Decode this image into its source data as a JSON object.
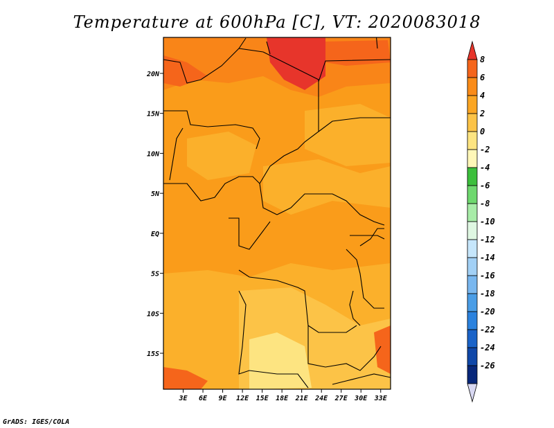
{
  "title": "Temperature at 600hPa [C], VT: 2020083018",
  "credit": "GrADS: IGES/COLA",
  "map": {
    "lon_range": [
      0,
      34.5
    ],
    "lat_range": [
      -19.5,
      24.5
    ],
    "lon_ticks": [
      {
        "v": 3,
        "label": "3E"
      },
      {
        "v": 6,
        "label": "6E"
      },
      {
        "v": 9,
        "label": "9E"
      },
      {
        "v": 12,
        "label": "12E"
      },
      {
        "v": 15,
        "label": "15E"
      },
      {
        "v": 18,
        "label": "18E"
      },
      {
        "v": 21,
        "label": "21E"
      },
      {
        "v": 24,
        "label": "24E"
      },
      {
        "v": 27,
        "label": "27E"
      },
      {
        "v": 30,
        "label": "30E"
      },
      {
        "v": 33,
        "label": "33E"
      }
    ],
    "lat_ticks": [
      {
        "v": 20,
        "label": "20N"
      },
      {
        "v": 15,
        "label": "15N"
      },
      {
        "v": 10,
        "label": "10N"
      },
      {
        "v": 5,
        "label": "5N"
      },
      {
        "v": 0,
        "label": "EQ"
      },
      {
        "v": -5,
        "label": "5S"
      },
      {
        "v": -10,
        "label": "10S"
      },
      {
        "v": -15,
        "label": "15S"
      }
    ]
  },
  "colorbar": {
    "labels": [
      "8",
      "6",
      "4",
      "2",
      "0",
      "-2",
      "-4",
      "-6",
      "-8",
      "-10",
      "-12",
      "-14",
      "-16",
      "-18",
      "-20",
      "-22",
      "-24",
      "-26"
    ],
    "colors": [
      "#e7352b",
      "#f5651b",
      "#fa8b18",
      "#fba623",
      "#fcc347",
      "#fde481",
      "#fff7b8",
      "#3cbf3c",
      "#6ed86e",
      "#a8eca8",
      "#dff7e2",
      "#c6e6fb",
      "#a2d0f5",
      "#79b7ef",
      "#4a9de6",
      "#2b82de",
      "#1a63c8",
      "#0f47a8",
      "#07277a",
      "#d8d8f2"
    ]
  }
}
